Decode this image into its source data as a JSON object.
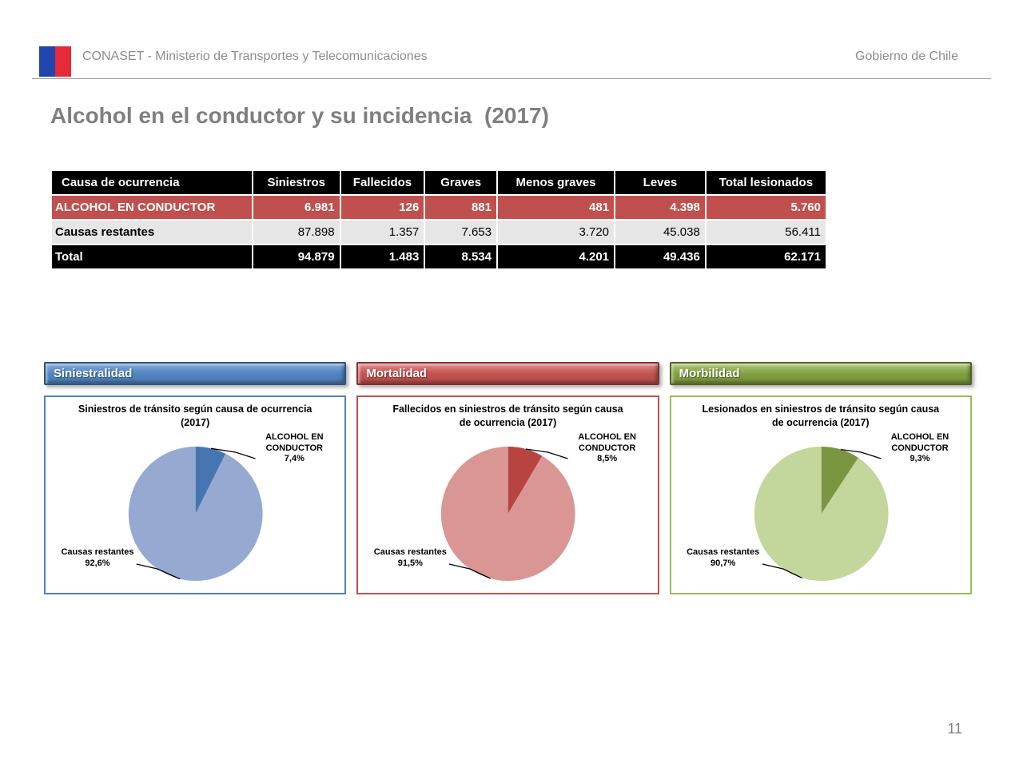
{
  "header": {
    "logo": {
      "blue_color": "#2144AD",
      "red_color": "#E52A38"
    },
    "org_label": "CONASET - Ministerio de Transportes y Telecomunicaciones",
    "government_label": "Gobierno de Chile"
  },
  "page_title": "Alcohol en el conductor y su incidencia  (2017)",
  "table": {
    "columns": [
      "Causa de ocurrencia",
      "Siniestros",
      "Fallecidos",
      "Graves",
      "Menos graves",
      "Leves",
      "Total lesionados"
    ],
    "rows": [
      {
        "label": "ALCOHOL EN CONDUCTOR",
        "values": [
          "6.981",
          "126",
          "881",
          "481",
          "4.398",
          "5.760"
        ],
        "style": "alcohol"
      },
      {
        "label": "Causas restantes",
        "values": [
          "87.898",
          "1.357",
          "7.653",
          "3.720",
          "45.038",
          "56.411"
        ],
        "style": "rest"
      },
      {
        "label": "Total",
        "values": [
          "94.879",
          "1.483",
          "8.534",
          "4.201",
          "49.436",
          "62.171"
        ],
        "style": "total"
      }
    ],
    "header_row_color": "#000000",
    "alcohol_row_color": "#C0504D",
    "rest_row_color": "#E6E6E6",
    "total_row_color": "#000000"
  },
  "panels": [
    {
      "button_label": "Siniestralidad",
      "accent": "#4F81BD",
      "button_top": "#7FA8D9",
      "button_base": "#4F81BD",
      "button_border": "#2F5579"
    },
    {
      "button_label": "Mortalidad",
      "accent": "#C0504D",
      "button_top": "#DD8B88",
      "button_base": "#C0504D",
      "button_border": "#7F3230"
    },
    {
      "button_label": "Morbilidad",
      "accent": "#9BBB59",
      "button_top": "#AFC97A",
      "button_base": "#7E9C3F",
      "button_border": "#4E6426"
    }
  ],
  "chart_data": [
    {
      "type": "pie",
      "title": "Siniestros de tránsito según causa de ocurrencia (2017)",
      "title_lines": [
        "Siniestros de tránsito según causa de ocurrencia",
        "(2017)"
      ],
      "labels": [
        "ALCOHOL EN CONDUCTOR",
        "Causas restantes"
      ],
      "values": [
        7.4,
        92.6
      ],
      "value_labels": [
        "7,4%",
        "92,6%"
      ],
      "colors": [
        "#4576B1",
        "#95A9D1"
      ],
      "legend_position": "callout"
    },
    {
      "type": "pie",
      "title": "Fallecidos en siniestros de tránsito según causa de ocurrencia (2017)",
      "title_lines": [
        "Fallecidos en siniestros de tránsito según causa",
        "de ocurrencia  (2017)"
      ],
      "labels": [
        "ALCOHOL EN CONDUCTOR",
        "Causas restantes"
      ],
      "values": [
        8.5,
        91.5
      ],
      "value_labels": [
        "8,5%",
        "91,5%"
      ],
      "colors": [
        "#B74440",
        "#D99694"
      ],
      "legend_position": "callout"
    },
    {
      "type": "pie",
      "title": "Lesionados en siniestros de tránsito según causa de ocurrencia (2017)",
      "title_lines": [
        "Lesionados  en siniestros de tránsito según causa",
        "de ocurrencia  (2017)"
      ],
      "labels": [
        "ALCOHOL EN CONDUCTOR",
        "Causas restantes"
      ],
      "values": [
        9.3,
        90.7
      ],
      "value_labels": [
        "9,3%",
        "90,7%"
      ],
      "colors": [
        "#7A9640",
        "#C3D69B"
      ],
      "legend_position": "callout"
    }
  ],
  "page_number": "11"
}
